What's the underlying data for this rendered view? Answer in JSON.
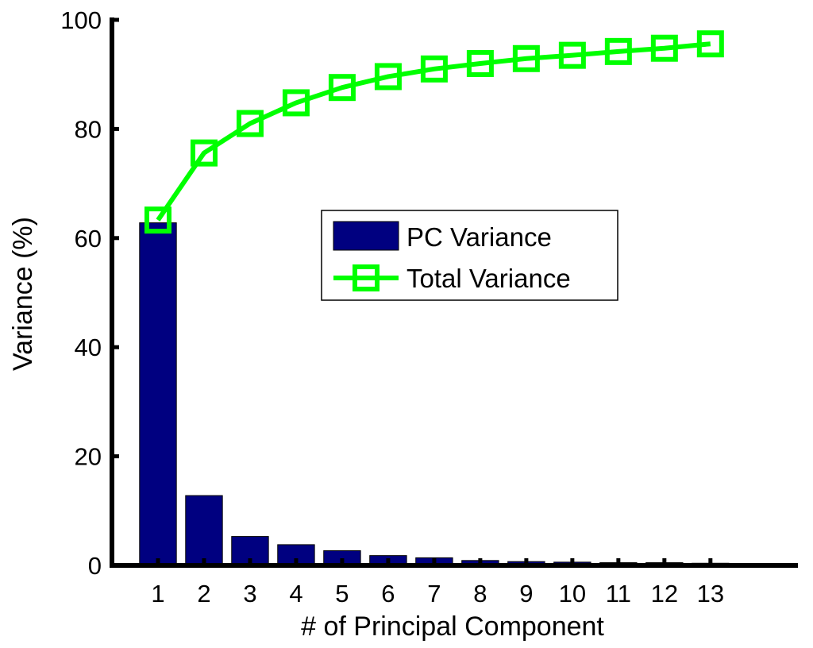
{
  "chart_data": {
    "type": "bar",
    "xlabel": "# of Principal Component",
    "ylabel": "Variance (%)",
    "xlim": [
      0,
      14.9
    ],
    "ylim": [
      0,
      100
    ],
    "yticks": [
      0,
      20,
      40,
      60,
      80,
      100
    ],
    "categories": [
      "1",
      "2",
      "3",
      "4",
      "5",
      "6",
      "7",
      "8",
      "9",
      "10",
      "11",
      "12",
      "13"
    ],
    "series": [
      {
        "name": "PC Variance",
        "kind": "bar",
        "color": "#000080",
        "values": [
          62.8,
          12.8,
          5.3,
          3.8,
          2.7,
          1.8,
          1.4,
          0.9,
          0.7,
          0.6,
          0.5,
          0.5,
          0.4
        ]
      },
      {
        "name": "Total Variance",
        "kind": "line",
        "marker": "square",
        "color": "#00ff00",
        "values": [
          63.3,
          75.6,
          81.0,
          84.8,
          87.6,
          89.6,
          91.0,
          92.0,
          92.9,
          93.5,
          94.2,
          94.8,
          95.6
        ]
      }
    ],
    "legend": {
      "placement": "center",
      "entries": [
        "PC Variance",
        "Total Variance"
      ]
    },
    "grid": false
  }
}
